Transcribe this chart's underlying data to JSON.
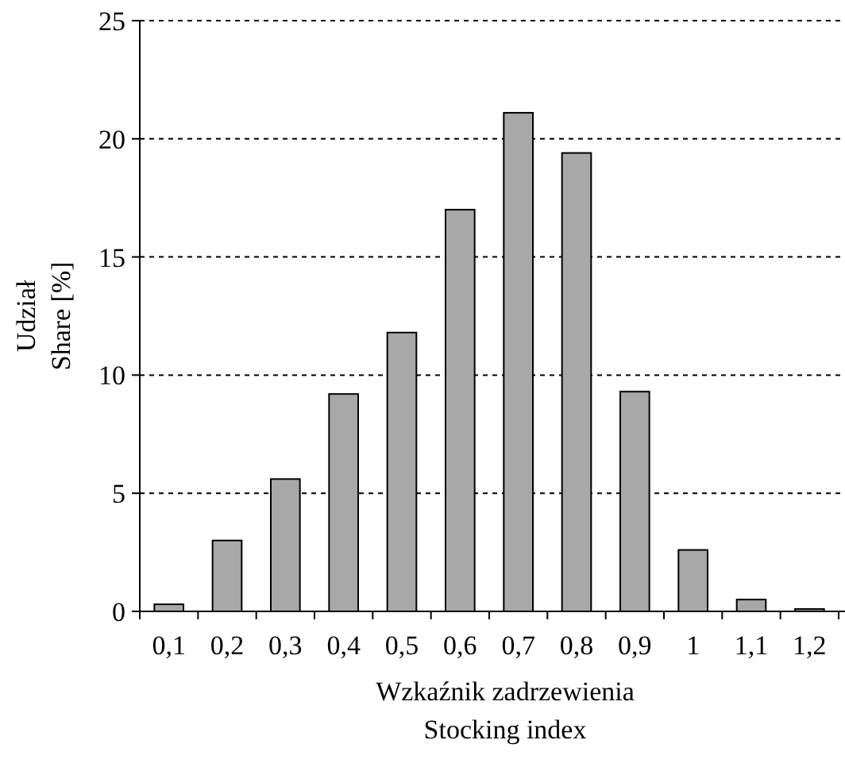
{
  "chart_data": {
    "type": "bar",
    "xlabel": "Wzkaźnik zadrzewienia\nStocking index",
    "ylabel": "Udział\nShare [%]",
    "categories": [
      "0,1",
      "0,2",
      "0,3",
      "0,4",
      "0,5",
      "0,6",
      "0,7",
      "0,8",
      "0,9",
      "1",
      "1,1",
      "1,2"
    ],
    "values": [
      0.3,
      3.0,
      5.6,
      9.2,
      11.8,
      17.0,
      21.1,
      19.4,
      9.3,
      2.6,
      0.5,
      0.1
    ],
    "color": "#a8a8a8",
    "ylim": [
      0,
      25
    ],
    "yticks": [
      0,
      5,
      10,
      15,
      20,
      25
    ],
    "grid": "y"
  }
}
